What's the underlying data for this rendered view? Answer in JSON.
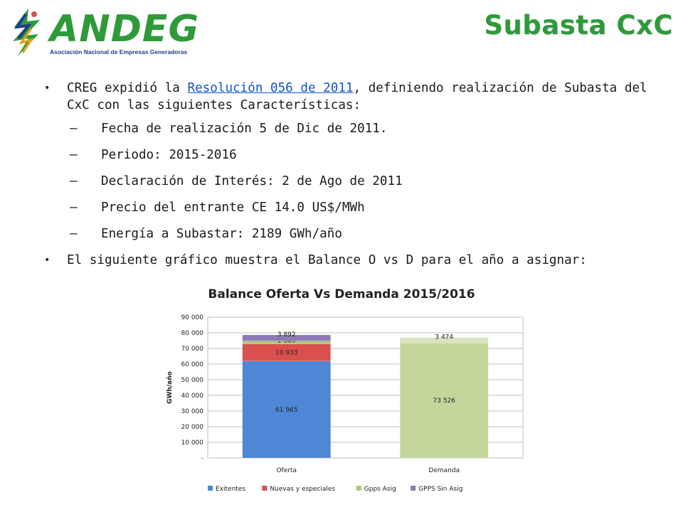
{
  "logo": {
    "name": "ANDEG",
    "subtitle": "Asociación Nacional de Empresas Generadoras"
  },
  "title": "Subasta CxC",
  "bullets": {
    "b1_pre": "CREG expidió la ",
    "b1_link": "Resolución 056 de 2011",
    "b1_post": ", definiendo realización de Subasta del CxC con las siguientes Características:",
    "sub": [
      "Fecha de realización 5 de Dic de 2011.",
      "Periodo: 2015-2016",
      "Declaración de Interés: 2 de Ago de 2011",
      "Precio del entrante CE 14.0 US$/MWh",
      "Energía a Subastar: 2189 GWh/año"
    ],
    "b2": "El siguiente gráfico muestra el Balance O vs D para el año a asignar:"
  },
  "chart_data": {
    "type": "bar",
    "stacked": true,
    "title": "Balance Oferta Vs Demanda 2015/2016",
    "ylabel": "GWh/año",
    "xlabel": "",
    "ylim": [
      0,
      90000
    ],
    "yticks": [
      0,
      10000,
      20000,
      30000,
      40000,
      50000,
      60000,
      70000,
      80000,
      90000
    ],
    "ytick_labels": [
      "-",
      "10 000",
      "20 000",
      "30 000",
      "40 000",
      "50 000",
      "60 000",
      "70 000",
      "80 000",
      "90 000"
    ],
    "categories": [
      "Oferta",
      "Demanda"
    ],
    "grid": true,
    "legend_position": "bottom",
    "series": [
      {
        "name": "Exitentes",
        "color": "#4f86d6",
        "values": [
          61965,
          null
        ],
        "labels": [
          "61 965",
          ""
        ]
      },
      {
        "name": "Nuevas y especiales",
        "color": "#d9504d",
        "values": [
          10933,
          null
        ],
        "labels": [
          "10 933",
          ""
        ]
      },
      {
        "name": "Gpps Asig",
        "color": "#a8cc74",
        "values": [
          1883,
          null
        ],
        "labels": [
          "1 883",
          ""
        ]
      },
      {
        "name": "GPPS Sin Asig",
        "color": "#8e79b8",
        "values": [
          3892,
          null
        ],
        "labels": [
          "3 892",
          ""
        ]
      }
    ],
    "demand_series": [
      {
        "color": "#c3d69b",
        "values": [
          null,
          73526
        ],
        "labels": [
          "",
          "73 526"
        ]
      },
      {
        "color": "#d7e4bd",
        "values": [
          null,
          3474
        ],
        "labels": [
          "",
          "3 474"
        ]
      }
    ]
  }
}
